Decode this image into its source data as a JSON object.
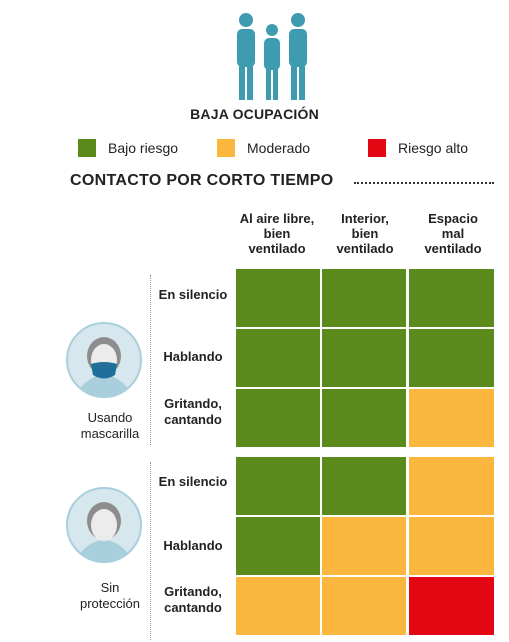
{
  "header": {
    "occupancy_title": "BAJA OCUPACIÓN",
    "people_icon": "people-group-icon"
  },
  "legend": [
    {
      "label": "Bajo riesgo",
      "color": "#5a8a1c"
    },
    {
      "label": "Moderado",
      "color": "#fbb73d"
    },
    {
      "label": "Riesgo alto",
      "color": "#e30613"
    }
  ],
  "section": {
    "title": "CONTACTO POR CORTO TIEMPO"
  },
  "columns": [
    {
      "lines": [
        "Al aire libre,",
        "bien",
        "ventilado"
      ]
    },
    {
      "lines": [
        "Interior,",
        "bien",
        "ventilado"
      ]
    },
    {
      "lines": [
        "Espacio",
        "mal",
        "ventilado"
      ]
    }
  ],
  "groups": [
    {
      "label_lines": [
        "Usando",
        "mascarilla"
      ],
      "icon": "masked-person-icon",
      "rows": [
        {
          "label_lines": [
            "En silencio"
          ],
          "risk": [
            "low",
            "low",
            "low"
          ]
        },
        {
          "label_lines": [
            "Hablando"
          ],
          "risk": [
            "low",
            "low",
            "low"
          ]
        },
        {
          "label_lines": [
            "Gritando,",
            "cantando"
          ],
          "risk": [
            "low",
            "low",
            "moderate"
          ]
        }
      ]
    },
    {
      "label_lines": [
        "Sin",
        "protección"
      ],
      "icon": "unprotected-person-icon",
      "rows": [
        {
          "label_lines": [
            "En silencio"
          ],
          "risk": [
            "low",
            "low",
            "moderate"
          ]
        },
        {
          "label_lines": [
            "Hablando"
          ],
          "risk": [
            "low",
            "moderate",
            "moderate"
          ]
        },
        {
          "label_lines": [
            "Gritando,",
            "cantando"
          ],
          "risk": [
            "moderate",
            "moderate",
            "high"
          ]
        }
      ]
    }
  ],
  "colors": {
    "low": "#5a8a1c",
    "moderate": "#fbb73d",
    "high": "#e30613",
    "person": "#3e9bb0",
    "avatar_bg": "#d7e7ee",
    "avatar_ring": "#a9cfdd",
    "face": "#ececec",
    "hair": "#8d8d8d",
    "mask": "#1f6f9a"
  }
}
